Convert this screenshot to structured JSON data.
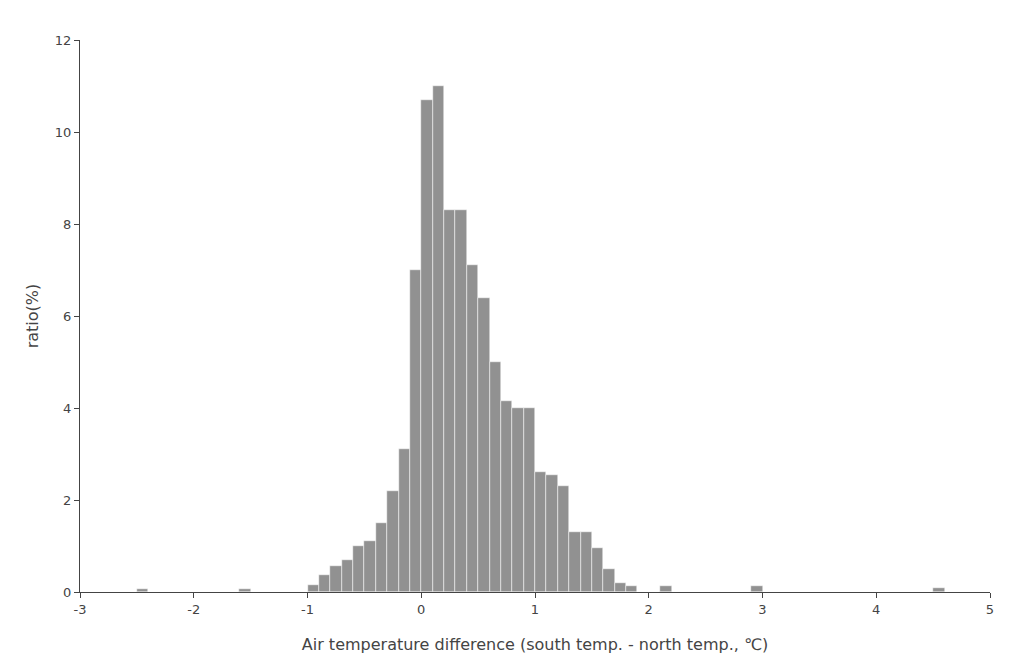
{
  "chart_data": {
    "type": "histogram",
    "xlabel": "Air temperature difference (south temp. - north temp., ℃)",
    "ylabel": "ratio(%)",
    "bins": [
      -3,
      -2.9,
      -2.8,
      -2.7,
      -2.6,
      -2.5,
      -2.4,
      -2.3,
      -2.2,
      -2.1,
      -2,
      -1.9,
      -1.8,
      -1.7,
      -1.6,
      -1.5,
      -1.4,
      -1.3,
      -1.2,
      -1.1,
      -1,
      -0.9,
      -0.8,
      -0.7,
      -0.6,
      -0.5,
      -0.4,
      -0.3,
      -0.2,
      -0.1,
      0,
      0.1,
      0.2,
      0.3,
      0.4,
      0.5,
      0.6,
      0.7,
      0.8,
      0.9,
      1,
      1.1,
      1.2,
      1.3,
      1.4,
      1.5,
      1.6,
      1.7,
      1.8,
      1.9,
      2,
      2.1,
      2.2,
      2.3,
      2.4,
      2.5,
      2.6,
      2.7,
      2.8,
      2.9,
      3,
      3.1,
      3.2,
      3.3,
      3.4,
      3.5,
      3.6,
      3.7,
      3.8,
      3.9,
      4,
      4.1,
      4.2,
      4.3,
      4.4,
      4.5,
      4.6,
      4.7,
      4.8,
      4.9,
      5
    ],
    "values": [
      0,
      0,
      0,
      0,
      0,
      0.07,
      0,
      0,
      0,
      0,
      0,
      0,
      0,
      0,
      0.07,
      0,
      0,
      0,
      0,
      0,
      0.15,
      0.37,
      0.57,
      0.7,
      1.0,
      1.1,
      1.5,
      2.2,
      3.1,
      7.0,
      10.7,
      11.0,
      8.3,
      8.3,
      7.1,
      6.4,
      5.0,
      4.15,
      4.0,
      4.0,
      2.6,
      2.55,
      2.3,
      1.3,
      1.3,
      0.95,
      0.5,
      0.2,
      0.12,
      0,
      0,
      0.12,
      0,
      0,
      0,
      0,
      0,
      0,
      0,
      0.12,
      0,
      0,
      0,
      0,
      0,
      0,
      0,
      0,
      0,
      0,
      0,
      0,
      0,
      0,
      0,
      0.08,
      0,
      0,
      0,
      0
    ],
    "color": "#919191",
    "xlim": [
      -3,
      5
    ],
    "ylim": [
      0,
      12
    ],
    "xticks": [
      -3,
      -2,
      -1,
      0,
      1,
      2,
      3,
      4,
      5
    ],
    "yticks": [
      0,
      2,
      4,
      6,
      8,
      10,
      12
    ],
    "grid": false
  }
}
